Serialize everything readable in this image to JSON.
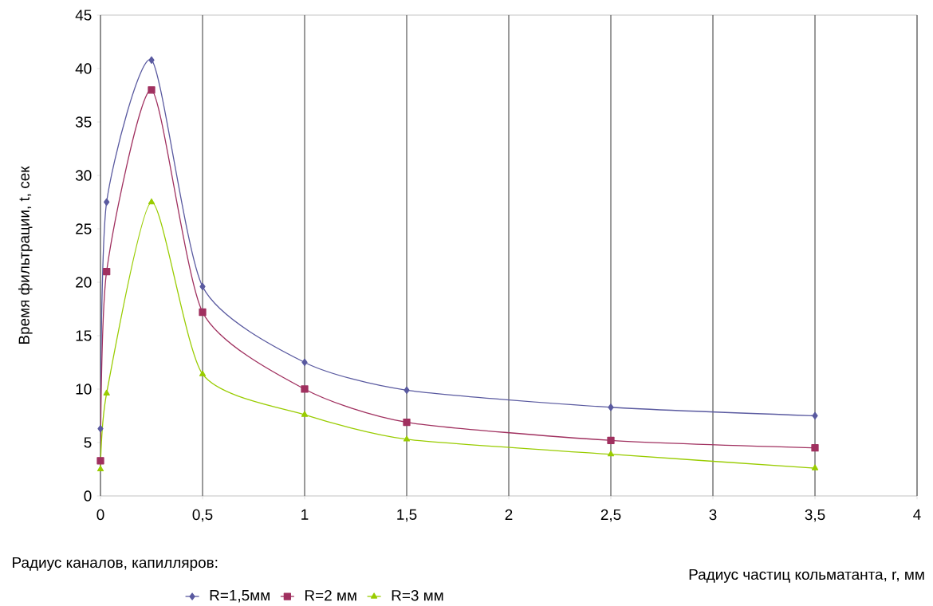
{
  "chart_data": {
    "type": "line",
    "xlabel": "Радиус частиц кольматанта, r, мм",
    "ylabel": "Время фильтрации, t, сек",
    "legend_title": "Радиус каналов, капилляров:",
    "xlim": [
      0,
      4
    ],
    "ylim": [
      0,
      45
    ],
    "xticks": [
      0,
      {
        "value": 0.5,
        "label": "0,5"
      },
      1,
      {
        "value": 1.5,
        "label": "1,5"
      },
      2,
      {
        "value": 2.5,
        "label": "2,5"
      },
      3,
      {
        "value": 3.5,
        "label": "3,5"
      },
      4
    ],
    "yticks": [
      0,
      5,
      10,
      15,
      20,
      25,
      30,
      35,
      40,
      45
    ],
    "grid": "x",
    "legend": "bottom",
    "series": [
      {
        "name": "R=1,5мм",
        "color": "#5a5aa0",
        "marker": "diamond",
        "x": [
          0,
          0.03,
          0.25,
          0.5,
          1,
          1.5,
          2.5,
          3.5
        ],
        "values": [
          6.3,
          27.5,
          40.8,
          19.6,
          12.5,
          9.9,
          8.3,
          7.5
        ]
      },
      {
        "name": "R=2 мм",
        "color": "#a0305f",
        "marker": "square",
        "x": [
          0,
          0.03,
          0.25,
          0.5,
          1,
          1.5,
          2.5,
          3.5
        ],
        "values": [
          3.3,
          21,
          38,
          17.2,
          10,
          6.9,
          5.2,
          4.5
        ]
      },
      {
        "name": "R=3 мм",
        "color": "#99cc00",
        "marker": "triangle",
        "x": [
          0,
          0.03,
          0.25,
          0.5,
          1,
          1.5,
          2.5,
          3.5
        ],
        "values": [
          2.5,
          9.6,
          27.5,
          11.4,
          7.6,
          5.3,
          3.9,
          2.6
        ]
      }
    ]
  }
}
